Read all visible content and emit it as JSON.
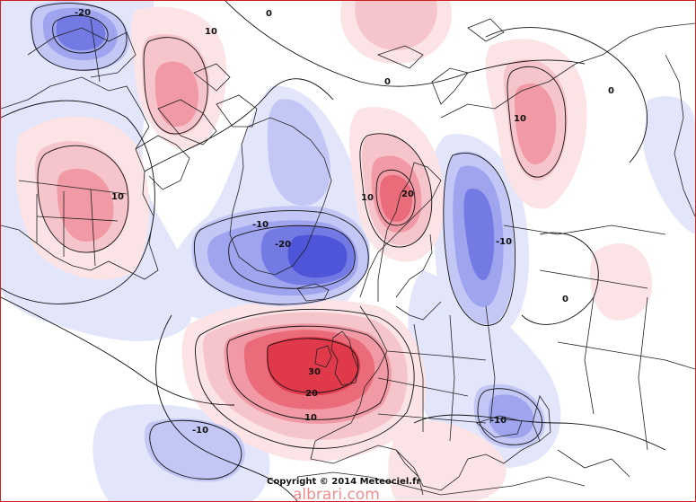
{
  "map": {
    "colors": {
      "positive_1": "#fbe3e6",
      "positive_2": "#f6c4cb",
      "positive_3": "#f19aa5",
      "positive_4": "#ea6b79",
      "positive_5": "#e0394a",
      "negative_1": "#e3e5fb",
      "negative_2": "#c3c7f5",
      "negative_3": "#9ea4ee",
      "negative_4": "#737ae4",
      "negative_5": "#4e55d8",
      "coastline": "#222222",
      "contour": "#111111",
      "frame": "#cc2222"
    },
    "contour_labels": [
      {
        "id": "label-minus20-nw",
        "text": "-20"
      },
      {
        "id": "label-10-nw",
        "text": "10"
      },
      {
        "id": "label-0-north",
        "text": "0"
      },
      {
        "id": "label-0-east",
        "text": "0"
      },
      {
        "id": "label-10-east",
        "text": "10"
      },
      {
        "id": "label-0-arctic",
        "text": "0"
      },
      {
        "id": "label-10-scandinavia",
        "text": "10"
      },
      {
        "id": "label-20-scandinavia",
        "text": "20"
      },
      {
        "id": "label-10-america",
        "text": "10"
      },
      {
        "id": "label-minus10-greenland",
        "text": "-10"
      },
      {
        "id": "label-minus20-greenland",
        "text": "-20"
      },
      {
        "id": "label-minus10-russia",
        "text": "-10"
      },
      {
        "id": "label-0-asia",
        "text": "0"
      },
      {
        "id": "label-30-uk",
        "text": "30"
      },
      {
        "id": "label-20-europe",
        "text": "20"
      },
      {
        "id": "label-10-europe",
        "text": "10"
      },
      {
        "id": "label-minus10-atlantic",
        "text": "-10"
      },
      {
        "id": "label-minus10-mideast",
        "text": "-10"
      }
    ]
  },
  "footer": {
    "copyright": "Copyright © 2014 Meteociel.fr",
    "watermark": "albrari.com"
  }
}
